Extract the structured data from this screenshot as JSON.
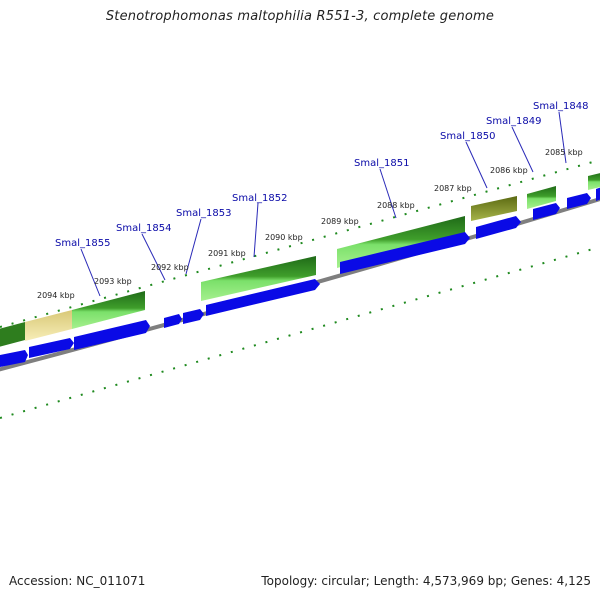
{
  "title": "Stenotrophomonas maltophilia R551-3, complete genome",
  "footer": {
    "accession": "Accession: NC_011071",
    "summary": "Topology: circular; Length: 4,573,969 bp; Genes: 4,125"
  },
  "gene_labels": [
    "Smal_1855",
    "Smal_1854",
    "Smal_1853",
    "Smal_1852",
    "Smal_1851",
    "Smal_1850",
    "Smal_1849",
    "Smal_1848"
  ],
  "kbp_labels": [
    "2094 kbp",
    "2093 kbp",
    "2092 kbp",
    "2091 kbp",
    "2090 kbp",
    "2089 kbp",
    "2088 kbp",
    "2087 kbp",
    "2086 kbp",
    "2085 kbp"
  ],
  "colors": {
    "gene_dark_green": "#2e7d1e",
    "gene_light_green": "#7be06a",
    "gene_pale_yellow": "#f3e6a0",
    "gene_olive": "#7a8a22",
    "cds_blue": "#0a0ae6",
    "backbone_gray": "#7f7f7f",
    "tick_green": "#1f8a1f",
    "label_blue": "#0a0aa8"
  }
}
